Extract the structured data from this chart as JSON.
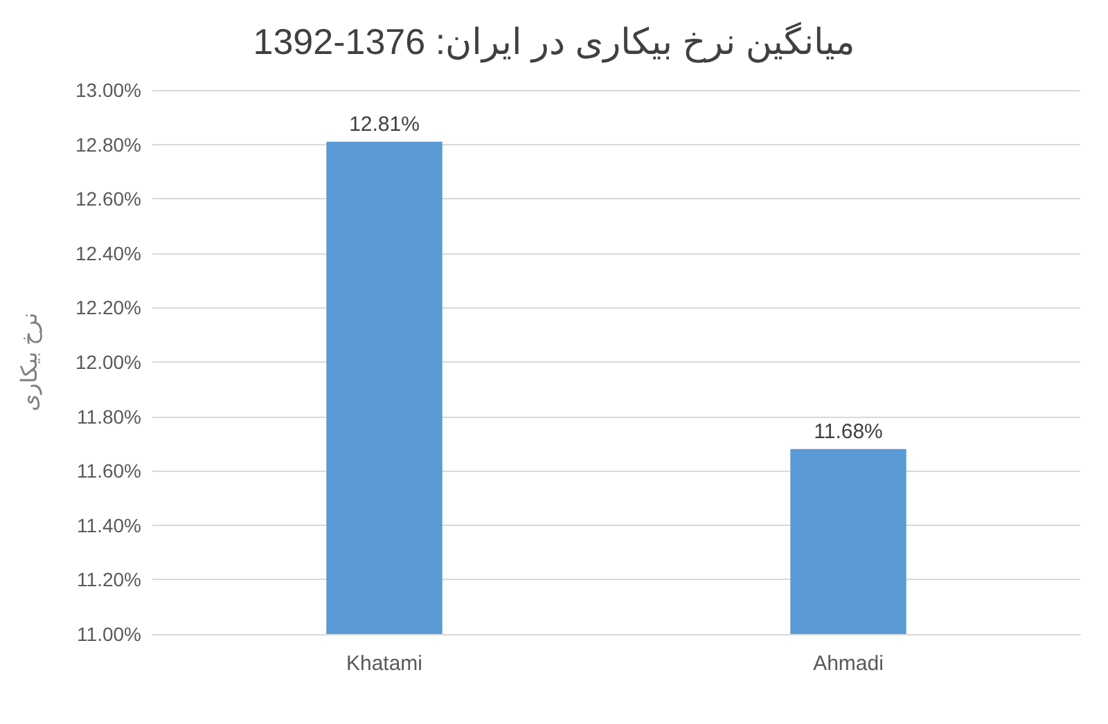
{
  "chart_data": {
    "type": "bar",
    "title": "میانگین نرخ بیکاری در ایران: 1376-1392",
    "ylabel": "نرخ بیکاری",
    "categories": [
      "Khatami",
      "Ahmadi"
    ],
    "series": [
      {
        "color": "#5b9bd5",
        "values": [
          12.81,
          11.68
        ],
        "value_labels": [
          "12.81%",
          "11.68%"
        ]
      }
    ],
    "ylim": [
      11,
      13
    ],
    "yticks": [
      {
        "value": 11,
        "label": "11.00%"
      },
      {
        "value": 11.2,
        "label": "11.20%"
      },
      {
        "value": 11.4,
        "label": "11.40%"
      },
      {
        "value": 11.6,
        "label": "11.60%"
      },
      {
        "value": 11.8,
        "label": "11.80%"
      },
      {
        "value": 12,
        "label": "12.00%"
      },
      {
        "value": 12.2,
        "label": "12.20%"
      },
      {
        "value": 12.4,
        "label": "12.40%"
      },
      {
        "value": 12.6,
        "label": "12.60%"
      },
      {
        "value": 12.8,
        "label": "12.80%"
      },
      {
        "value": 13,
        "label": "13.00%"
      }
    ],
    "grid": "y"
  }
}
